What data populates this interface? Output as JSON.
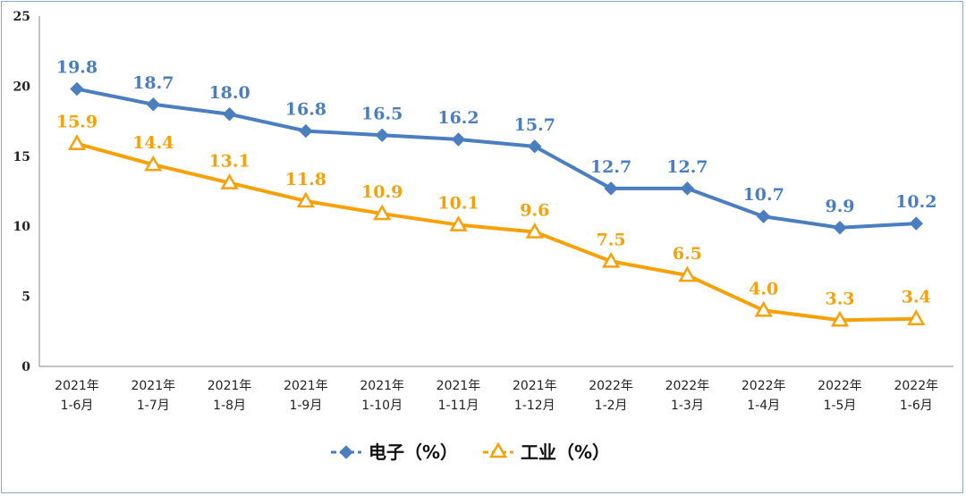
{
  "chart_data": {
    "type": "line",
    "title": "",
    "xlabel": "",
    "ylabel": "",
    "ylim": [
      0,
      25
    ],
    "yticks": [
      "0",
      "5",
      "10",
      "15",
      "20",
      "25"
    ],
    "grid": false,
    "legend_position": "bottom",
    "categories": [
      [
        "2021年",
        "1-6月"
      ],
      [
        "2021年",
        "1-7月"
      ],
      [
        "2021年",
        "1-8月"
      ],
      [
        "2021年",
        "1-9月"
      ],
      [
        "2021年",
        "1-10月"
      ],
      [
        "2021年",
        "1-11月"
      ],
      [
        "2021年",
        "1-12月"
      ],
      [
        "2022年",
        "1-2月"
      ],
      [
        "2022年",
        "1-3月"
      ],
      [
        "2022年",
        "1-4月"
      ],
      [
        "2022年",
        "1-5月"
      ],
      [
        "2022年",
        "1-6月"
      ]
    ],
    "series": [
      {
        "name": "电子（%）",
        "color": "#4a7ebf",
        "marker": "diamond",
        "values": [
          19.8,
          18.7,
          18.0,
          16.8,
          16.5,
          16.2,
          15.7,
          12.7,
          12.7,
          10.7,
          9.9,
          10.2
        ],
        "labels": [
          "19.8",
          "18.7",
          "18.0",
          "16.8",
          "16.5",
          "16.2",
          "15.7",
          "12.7",
          "12.7",
          "10.7",
          "9.9",
          "10.2"
        ]
      },
      {
        "name": "工业（%）",
        "color": "#f5a10a",
        "marker": "triangle",
        "values": [
          15.9,
          14.4,
          13.1,
          11.8,
          10.9,
          10.1,
          9.6,
          7.5,
          6.5,
          4.0,
          3.3,
          3.4
        ],
        "labels": [
          "15.9",
          "14.4",
          "13.1",
          "11.8",
          "10.9",
          "10.1",
          "9.6",
          "7.5",
          "6.5",
          "4.0",
          "3.3",
          "3.4"
        ]
      }
    ]
  }
}
